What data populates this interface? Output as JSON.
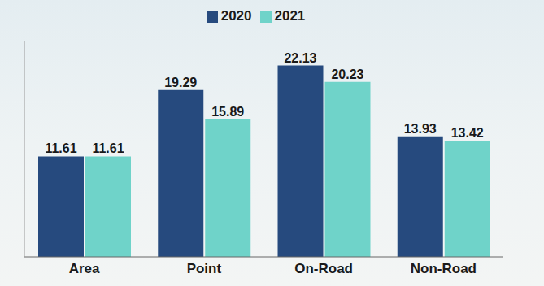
{
  "chart_data": {
    "type": "bar",
    "categories": [
      "Area",
      "Point",
      "On-Road",
      "Non-Road"
    ],
    "series": [
      {
        "name": "2020",
        "color": "#264a7e",
        "values": [
          11.61,
          19.29,
          22.13,
          13.93
        ]
      },
      {
        "name": "2021",
        "color": "#6fd3c9",
        "values": [
          11.61,
          15.89,
          20.23,
          13.42
        ]
      }
    ],
    "ylim": [
      0,
      25
    ],
    "grid": false,
    "legend": "top",
    "data_labels": true,
    "tick_labels": "x"
  }
}
